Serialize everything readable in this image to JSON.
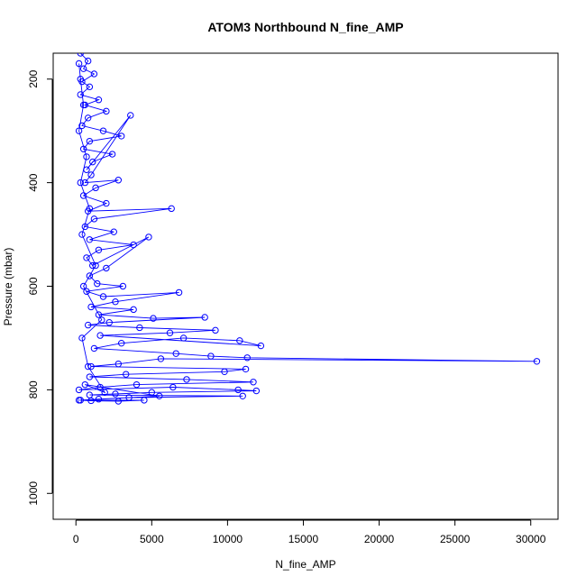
{
  "chart_data": {
    "type": "line",
    "title": "ATOM3 Northbound N_fine_AMP",
    "xlabel": "N_fine_AMP",
    "ylabel": "Pressure (mbar)",
    "xlim": [
      -1500,
      31800
    ],
    "ylim": [
      1050,
      150
    ],
    "y_reversed": true,
    "grid": false,
    "xticks": [
      0,
      5000,
      10000,
      15000,
      20000,
      25000,
      30000
    ],
    "yticks": [
      200,
      400,
      600,
      800,
      1000
    ],
    "series_color": "#0000ff",
    "series": [
      {
        "marker": "open-circle",
        "points": [
          [
            300,
            150
          ],
          [
            800,
            165
          ],
          [
            500,
            180
          ],
          [
            1200,
            190
          ],
          [
            400,
            205
          ],
          [
            900,
            215
          ],
          [
            300,
            230
          ],
          [
            1500,
            240
          ],
          [
            600,
            250
          ],
          [
            2000,
            262
          ],
          [
            800,
            275
          ],
          [
            400,
            290
          ],
          [
            1800,
            300
          ],
          [
            3000,
            310
          ],
          [
            900,
            320
          ],
          [
            500,
            335
          ],
          [
            2400,
            345
          ],
          [
            1100,
            360
          ],
          [
            700,
            375
          ],
          [
            3600,
            270
          ],
          [
            1000,
            385
          ],
          [
            600,
            400
          ],
          [
            2800,
            395
          ],
          [
            1300,
            410
          ],
          [
            500,
            425
          ],
          [
            2000,
            440
          ],
          [
            800,
            455
          ],
          [
            6300,
            450
          ],
          [
            1200,
            470
          ],
          [
            600,
            485
          ],
          [
            2500,
            495
          ],
          [
            900,
            510
          ],
          [
            3800,
            520
          ],
          [
            1500,
            530
          ],
          [
            700,
            545
          ],
          [
            1100,
            560
          ],
          [
            4800,
            505
          ],
          [
            2000,
            565
          ],
          [
            900,
            580
          ],
          [
            1400,
            595
          ],
          [
            3100,
            600
          ],
          [
            700,
            610
          ],
          [
            1800,
            620
          ],
          [
            6800,
            612
          ],
          [
            2600,
            630
          ],
          [
            1000,
            640
          ],
          [
            3800,
            645
          ],
          [
            1500,
            655
          ],
          [
            5100,
            662
          ],
          [
            8500,
            660
          ],
          [
            2200,
            670
          ],
          [
            800,
            675
          ],
          [
            4200,
            680
          ],
          [
            9200,
            685
          ],
          [
            6200,
            690
          ],
          [
            1600,
            695
          ],
          [
            12200,
            715
          ],
          [
            10800,
            705
          ],
          [
            7100,
            700
          ],
          [
            3000,
            710
          ],
          [
            1200,
            720
          ],
          [
            6600,
            730
          ],
          [
            8900,
            735
          ],
          [
            11300,
            738
          ],
          [
            30400,
            745
          ],
          [
            5600,
            740
          ],
          [
            2800,
            750
          ],
          [
            1000,
            755
          ],
          [
            11200,
            760
          ],
          [
            9800,
            765
          ],
          [
            3300,
            770
          ],
          [
            900,
            775
          ],
          [
            7300,
            780
          ],
          [
            11700,
            785
          ],
          [
            4000,
            790
          ],
          [
            1600,
            795
          ],
          [
            200,
            800
          ],
          [
            6400,
            795
          ],
          [
            10700,
            800
          ],
          [
            11900,
            802
          ],
          [
            5000,
            805
          ],
          [
            2600,
            808
          ],
          [
            900,
            810
          ],
          [
            11000,
            812
          ],
          [
            3500,
            815
          ],
          [
            1500,
            818
          ],
          [
            200,
            820
          ],
          [
            4500,
            820
          ],
          [
            2800,
            822
          ],
          [
            1000,
            821
          ],
          [
            300,
            820
          ],
          [
            5500,
            812
          ],
          [
            600,
            790
          ],
          [
            1900,
            805
          ],
          [
            800,
            755
          ],
          [
            400,
            700
          ],
          [
            1700,
            665
          ],
          [
            500,
            600
          ],
          [
            1300,
            560
          ],
          [
            400,
            500
          ],
          [
            900,
            450
          ],
          [
            300,
            400
          ],
          [
            700,
            350
          ],
          [
            200,
            300
          ],
          [
            500,
            250
          ],
          [
            300,
            200
          ],
          [
            200,
            170
          ]
        ]
      }
    ]
  }
}
